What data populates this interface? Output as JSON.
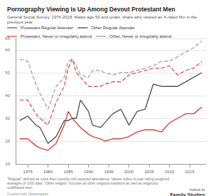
{
  "chart_data": {
    "type": "line",
    "title": "Pornography Viewing Is Up Among Devout Protestant Men",
    "subtitle": "General Social Survey, 1976-2018, Males age 50 and under, share who viewed an X-rated film in the previous year",
    "annotations": [
      "\"Regular\" defined as more than monthly self-reported attendance. Values reflect 6-year rolling weighted averages of GSS data. \"Other religion\" includes all other religious traditions as well as religiously unaffiliated men.",
      "Created with Datawrapper",
      "Institute for",
      "Family Studies"
    ],
    "x": [
      1973,
      1975,
      1977,
      1978,
      1980,
      1982,
      1984,
      1985,
      1986,
      1987,
      1988,
      1990,
      1991,
      1993,
      1994,
      1996,
      1998,
      2000,
      2002,
      2004,
      2006,
      2008,
      2010,
      2012,
      2014,
      2016,
      2018
    ],
    "series": [
      {
        "name": "Protestant Regular Attender",
        "color": "#e0403a",
        "line_style": "solid",
        "values": [
          21,
          21,
          18,
          17,
          16,
          19,
          27,
          33,
          30,
          28,
          26,
          23,
          22,
          21,
          20,
          21,
          21,
          22,
          24,
          25,
          25,
          24,
          28,
          30,
          32,
          32,
          35
        ]
      },
      {
        "name": "Other Regular Attender",
        "color": "#555555",
        "line_style": "solid",
        "values": [
          29,
          31,
          27,
          26,
          19,
          22,
          29,
          29,
          30,
          30,
          38,
          33,
          27,
          26,
          28,
          32,
          34,
          27,
          33,
          34,
          45,
          44,
          44,
          44,
          46,
          48,
          50
        ]
      },
      {
        "name": "Protestant, Never or irregularly attend",
        "color": "#e85a50",
        "line_style": "dashed",
        "values": [
          38,
          38,
          32,
          30,
          27,
          37,
          44,
          52,
          56,
          50,
          48,
          44,
          44,
          44,
          45,
          46,
          46,
          49,
          50,
          51,
          52,
          52,
          53,
          49,
          51,
          52,
          55
        ]
      },
      {
        "name": "Other, Never or irregularly attend",
        "color": "#a8a8a8",
        "line_style": "dashed",
        "values": [
          56,
          55,
          45,
          41,
          34,
          44,
          48,
          55,
          56,
          53,
          49,
          48,
          51,
          51,
          50,
          49,
          50,
          50,
          51,
          52,
          53,
          55,
          55,
          57,
          59,
          61,
          64
        ]
      }
    ],
    "xlim": [
      1972,
      2019
    ],
    "xticks": [
      1975,
      1980,
      1985,
      1990,
      1995,
      2000,
      2005,
      2010,
      2015
    ],
    "ylim": [
      10,
      65
    ],
    "yticks": [
      10,
      20,
      30,
      40,
      50,
      60
    ],
    "grid": true,
    "legend": "top"
  }
}
